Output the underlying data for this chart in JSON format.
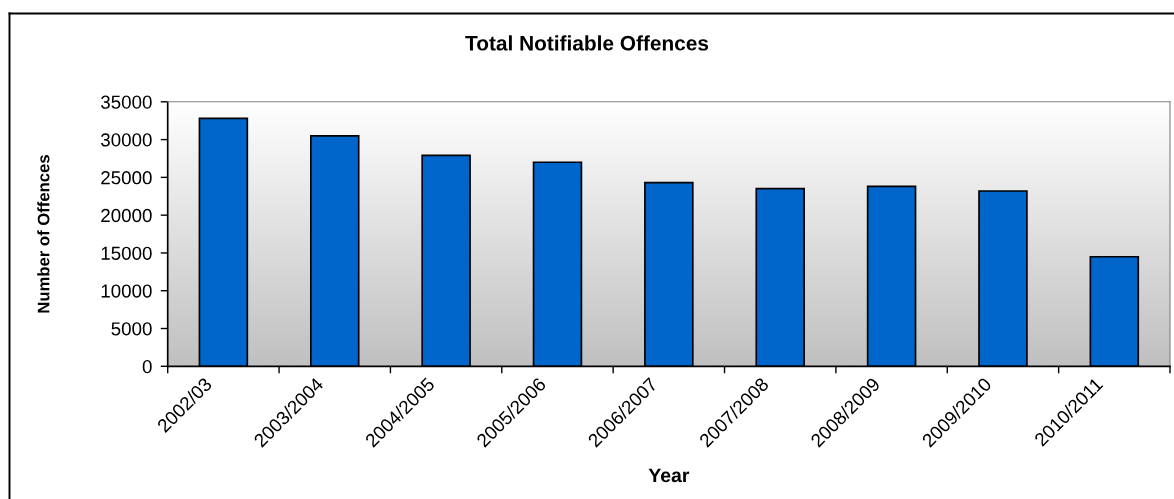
{
  "chart_data": {
    "type": "bar",
    "title": "Total Notifiable Offences",
    "xlabel": "Year",
    "ylabel": "Number of Offences",
    "categories": [
      "2002/03",
      "2003/2004",
      "2004/2005",
      "2005/2006",
      "2006/2007",
      "2007/2008",
      "2008/2009",
      "2009/2010",
      "2010/2011"
    ],
    "values": [
      32800,
      30500,
      27900,
      27000,
      24300,
      23500,
      23800,
      23200,
      14500
    ],
    "color": "#0066cc",
    "ylim": [
      0,
      35000
    ],
    "yticks": [
      0,
      5000,
      10000,
      15000,
      20000,
      25000,
      30000,
      35000
    ]
  }
}
